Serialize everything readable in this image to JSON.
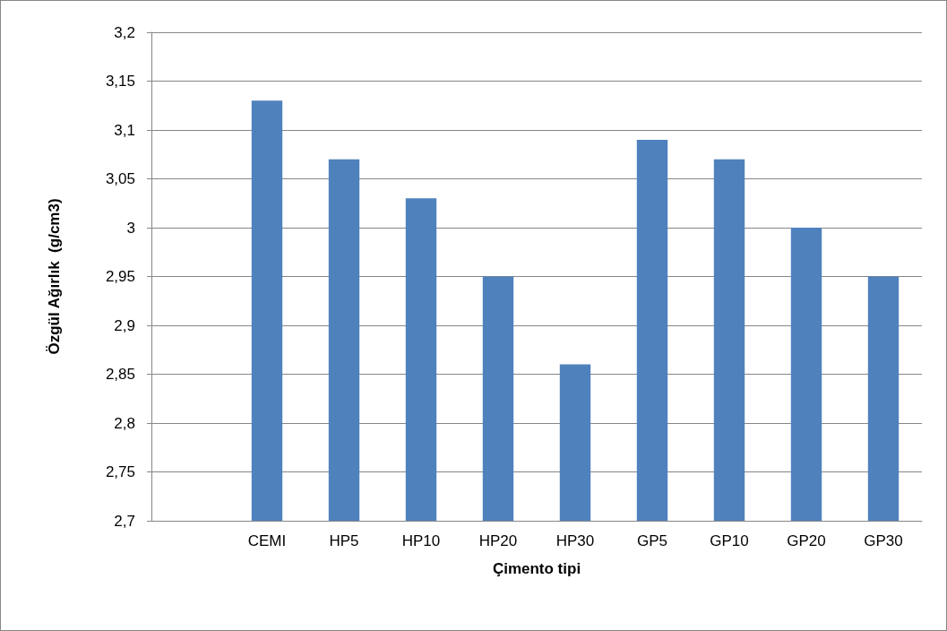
{
  "chart_data": {
    "type": "bar",
    "xlabel": "Çimento tipi",
    "ylabel": "Özgül Ağırlık  (g/cm3)",
    "categories": [
      null,
      "CEMI",
      "HP5",
      "HP10",
      "HP20",
      "HP30",
      "GP5",
      "GP10",
      "GP20",
      "GP30"
    ],
    "values": [
      null,
      3.13,
      3.07,
      3.03,
      2.95,
      2.86,
      3.09,
      3.07,
      3.0,
      2.95
    ],
    "color": "#4f81bd",
    "ylim": [
      2.7,
      3.2
    ],
    "yticks": [
      {
        "value": 2.7,
        "label": "2,7"
      },
      {
        "value": 2.75,
        "label": "2,75"
      },
      {
        "value": 2.8,
        "label": "2,8"
      },
      {
        "value": 2.85,
        "label": "2,85"
      },
      {
        "value": 2.9,
        "label": "2,9"
      },
      {
        "value": 2.95,
        "label": "2,95"
      },
      3,
      {
        "value": 3.05,
        "label": "3,05"
      },
      {
        "value": 3.1,
        "label": "3,1"
      },
      {
        "value": 3.15,
        "label": "3,15"
      },
      {
        "value": 3.2,
        "label": "3,2"
      }
    ],
    "grid": "y"
  }
}
